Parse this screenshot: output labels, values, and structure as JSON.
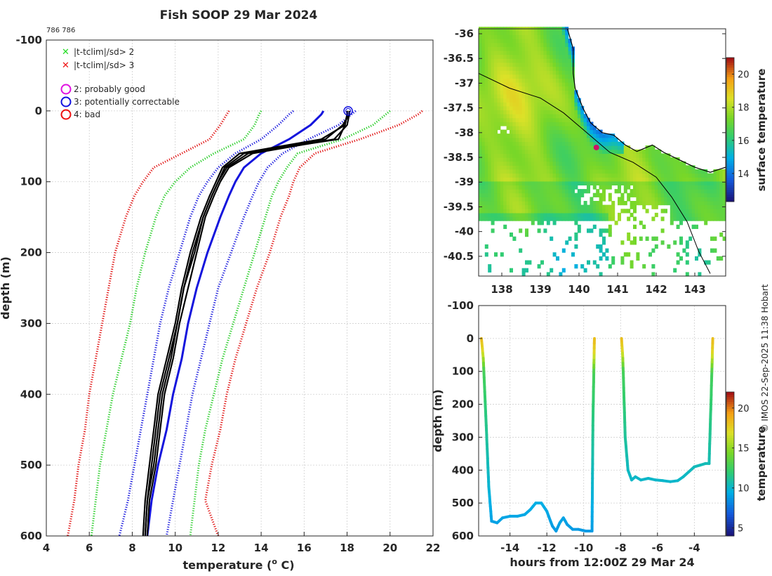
{
  "chart_data": [
    {
      "type": "line",
      "title": "Fish SOOP 29 Mar 2024",
      "subtitle": "786 786",
      "xlabel": "temperature (",
      "xlabel_sup": "o",
      "xlabel_end": " C)",
      "ylabel": "depth (m)",
      "xlim": [
        4,
        22
      ],
      "ylim": [
        600,
        -100
      ],
      "xticks": [
        "4",
        "6",
        "8",
        "10",
        "12",
        "14",
        "16",
        "18",
        "20",
        "22"
      ],
      "yticks": [
        "-100",
        "0",
        "100",
        "200",
        "300",
        "400",
        "500",
        "600"
      ],
      "grid": true,
      "legend": [
        {
          "label": "|t-tclim|/sd> 2",
          "marker": "x",
          "color": "#22dd22"
        },
        {
          "label": "|t-tclim|/sd> 3",
          "marker": "x",
          "color": "#ee1111"
        },
        {
          "label": "2: probably good",
          "marker": "o",
          "color": "#e010e0"
        },
        {
          "label": "3: potentially correctable",
          "marker": "o",
          "color": "#1010e0"
        },
        {
          "label": "4: bad",
          "marker": "o",
          "color": "#ee1111"
        }
      ],
      "depths": [
        0,
        5,
        20,
        40,
        60,
        80,
        100,
        120,
        150,
        200,
        250,
        300,
        350,
        400,
        450,
        500,
        550,
        600
      ],
      "series": [
        {
          "name": "clim +3sd",
          "color": "#e01010",
          "style": "dotted",
          "temps": [
            21.5,
            21.3,
            20.4,
            18.6,
            16.5,
            15.8,
            15.5,
            15.3,
            14.9,
            14.4,
            13.8,
            13.3,
            12.8,
            12.4,
            12.1,
            11.7,
            11.4,
            12.0
          ]
        },
        {
          "name": "clim +2sd",
          "color": "#22cc22",
          "style": "dotted",
          "temps": [
            20.0,
            19.8,
            19.2,
            17.8,
            15.7,
            15.2,
            14.8,
            14.5,
            14.2,
            13.7,
            13.2,
            12.7,
            12.2,
            11.8,
            11.4,
            11.1,
            10.9,
            10.7
          ]
        },
        {
          "name": "clim +1sd",
          "color": "#1515dd",
          "style": "dotted",
          "temps": [
            18.4,
            18.2,
            17.6,
            16.2,
            15.0,
            14.3,
            13.9,
            13.6,
            13.2,
            12.6,
            12.0,
            11.6,
            11.2,
            10.8,
            10.5,
            10.2,
            9.9,
            9.6
          ]
        },
        {
          "name": "clim mean",
          "color": "#1515dd",
          "style": "solid",
          "temps": [
            16.9,
            16.8,
            16.3,
            15.3,
            14.0,
            13.2,
            12.8,
            12.5,
            12.1,
            11.5,
            11.0,
            10.6,
            10.3,
            9.9,
            9.6,
            9.2,
            8.9,
            8.7
          ]
        },
        {
          "name": "clim -1sd",
          "color": "#1515dd",
          "style": "dotted",
          "temps": [
            15.5,
            15.3,
            14.8,
            14.0,
            12.8,
            12.0,
            11.5,
            11.1,
            10.7,
            10.2,
            9.7,
            9.3,
            9.0,
            8.7,
            8.4,
            8.1,
            7.8,
            7.4
          ]
        },
        {
          "name": "clim -2sd",
          "color": "#22cc22",
          "style": "dotted",
          "temps": [
            14.0,
            13.9,
            13.7,
            13.2,
            11.8,
            10.7,
            10.0,
            9.5,
            9.1,
            8.6,
            8.2,
            7.9,
            7.5,
            7.1,
            6.8,
            6.5,
            6.3,
            6.1
          ]
        },
        {
          "name": "clim -3sd",
          "color": "#e01010",
          "style": "dotted",
          "temps": [
            12.5,
            12.4,
            12.1,
            11.6,
            10.3,
            9.0,
            8.5,
            8.1,
            7.7,
            7.2,
            6.9,
            6.6,
            6.3,
            6.0,
            5.8,
            5.5,
            5.3,
            5.0
          ]
        },
        {
          "name": "profile 1",
          "color": "#000000",
          "style": "solid",
          "temps": [
            18.0,
            18.0,
            17.9,
            17.6,
            13.2,
            12.3,
            12.0,
            11.7,
            11.3,
            10.8,
            10.4,
            10.1,
            9.8,
            9.4,
            9.2,
            9.0,
            8.7,
            8.6
          ]
        },
        {
          "name": "profile 2",
          "color": "#000000",
          "style": "solid",
          "temps": [
            18.1,
            18.1,
            18.0,
            17.4,
            13.6,
            12.5,
            12.1,
            11.8,
            11.4,
            11.0,
            10.6,
            10.2,
            9.9,
            9.5,
            9.3,
            9.1,
            8.8,
            8.7
          ]
        },
        {
          "name": "profile 3",
          "color": "#000000",
          "style": "solid",
          "temps": [
            18.0,
            18.0,
            17.9,
            16.8,
            13.0,
            12.2,
            11.9,
            11.6,
            11.2,
            10.7,
            10.3,
            10.0,
            9.6,
            9.2,
            9.0,
            8.8,
            8.6,
            8.5
          ]
        },
        {
          "name": "profile 4",
          "color": "#000000",
          "style": "solid",
          "temps": [
            18.1,
            18.1,
            17.8,
            17.0,
            13.4,
            12.4,
            12.0,
            11.7,
            11.3,
            10.9,
            10.4,
            10.1,
            9.7,
            9.3,
            9.1,
            8.9,
            8.7,
            8.6
          ]
        }
      ],
      "flag_marker": {
        "temp": 18.05,
        "depth": 0,
        "color": "#1010e0"
      }
    },
    {
      "type": "heatmap",
      "ylabel_lat_ticks": [
        "-36",
        "-36.5",
        "-37",
        "-37.5",
        "-38",
        "-38.5",
        "-39",
        "-39.5",
        "-40",
        "-40.5"
      ],
      "xlabel_lon_ticks": [
        "138",
        "139",
        "140",
        "141",
        "142",
        "143"
      ],
      "xlim": [
        137.4,
        143.8
      ],
      "ylim": [
        -40.9,
        -35.9
      ],
      "colorbar_label": "surface temperature",
      "colorbar_ticks": [
        "14",
        "16",
        "18",
        "20"
      ],
      "colorbar_range": [
        12.3,
        21.0
      ],
      "track_point": {
        "lon": 140.45,
        "lat": -38.3,
        "color": "#cc1166"
      }
    },
    {
      "type": "line",
      "xlabel": "hours from 12:00Z 29 Mar 24",
      "ylabel": "depth (m)",
      "xlim": [
        -15.7,
        -2.3
      ],
      "ylim": [
        600,
        -100
      ],
      "xticks": [
        "-14",
        "-12",
        "-10",
        "-8",
        "-6",
        "-4"
      ],
      "yticks": [
        "-100",
        "0",
        "100",
        "200",
        "300",
        "400",
        "500",
        "600"
      ],
      "colorbar_label": "temperature",
      "colorbar_ticks": [
        "5",
        "10",
        "15",
        "20"
      ],
      "colorbar_range": [
        4,
        22
      ],
      "segments": [
        {
          "hours": [
            -15.55,
            -15.45,
            -15.3,
            -15.15,
            -15.0,
            -14.7,
            -14.4,
            -14.0,
            -13.6,
            -13.2,
            -12.9,
            -12.6,
            -12.3,
            -12.0,
            -11.7,
            -11.5,
            -11.3,
            -11.1,
            -10.9,
            -10.6,
            -10.3,
            -9.9,
            -9.55,
            -9.5,
            -9.42
          ],
          "depths": [
            0,
            60,
            250,
            450,
            555,
            560,
            545,
            540,
            540,
            535,
            520,
            500,
            500,
            525,
            570,
            585,
            560,
            545,
            565,
            580,
            580,
            585,
            585,
            250,
            0
          ]
        },
        {
          "hours": [
            -7.95,
            -7.88,
            -7.75,
            -7.6,
            -7.4,
            -7.2,
            -6.9,
            -6.5,
            -6.1,
            -5.7,
            -5.3,
            -4.9,
            -4.6,
            -4.3,
            -4.0,
            -3.7,
            -3.4,
            -3.2,
            -3.1,
            -3.0
          ],
          "depths": [
            0,
            60,
            300,
            400,
            430,
            420,
            430,
            425,
            430,
            432,
            435,
            432,
            420,
            405,
            390,
            385,
            380,
            380,
            200,
            0
          ]
        }
      ]
    }
  ],
  "copyright": "© IMOS 22-Sep-2025 11:38 Hobart",
  "colors": {
    "grid": "#d0d0d0",
    "axis": "#262626"
  }
}
